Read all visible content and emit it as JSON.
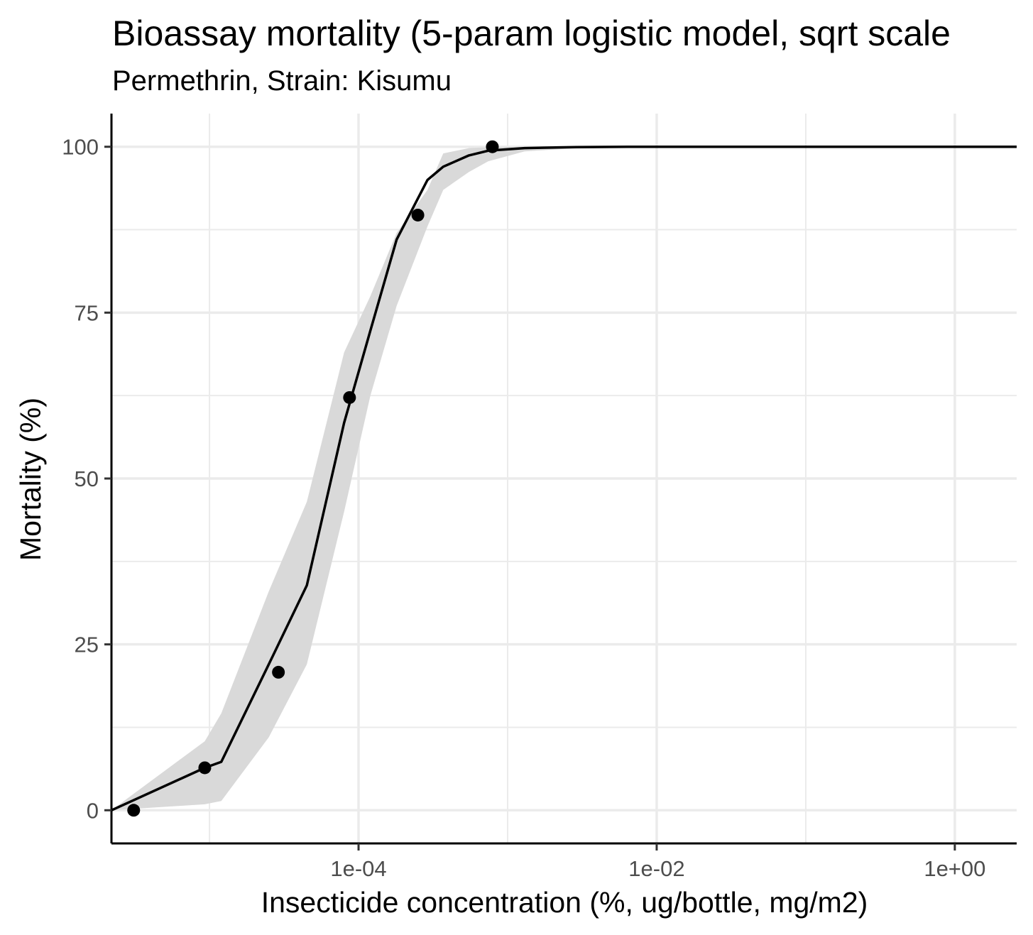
{
  "chart_data": {
    "type": "line",
    "title": "Bioassay mortality (5-param logistic model, sqrt scale",
    "subtitle": "Permethrin, Strain: Kisumu",
    "xlabel": "Insecticide concentration (%, ug/bottle, mg/m2)",
    "ylabel": "Mortality (%)",
    "x_scale": "log10",
    "xlim": [
      2.2e-06,
      2.6
    ],
    "ylim": [
      -5,
      105
    ],
    "x_ticks": [
      0.0001,
      0.01,
      1
    ],
    "x_tick_labels": [
      "1e-04",
      "1e-02",
      "1e+00"
    ],
    "x_minor_ticks": [
      1e-05,
      0.001,
      0.1
    ],
    "y_ticks": [
      0,
      25,
      50,
      75,
      100
    ],
    "y_tick_labels": [
      "0",
      "25",
      "50",
      "75",
      "100"
    ],
    "y_minor_ticks": [
      12.5,
      37.5,
      62.5,
      87.5
    ],
    "grid": true,
    "legend": "none",
    "colors": {
      "line": "#000000",
      "points": "#000000",
      "ribbon": "#d9d9d9",
      "grid": "#ebebeb"
    },
    "observed": {
      "x": [
        3.1e-06,
        9.3e-06,
        2.9e-05,
        8.7e-05,
        0.00025,
        0.00079
      ],
      "y": [
        0,
        6.4,
        20.8,
        62.2,
        89.7,
        100
      ]
    },
    "fit": {
      "x": [
        2.2e-06,
        9.3e-06,
        1.2e-05,
        2.5e-05,
        4.5e-05,
        8e-05,
        0.00012,
        0.00018,
        0.00029,
        0.00037,
        0.00055,
        0.00074,
        0.0013,
        0.0029,
        0.0064,
        0.01,
        0.1,
        1,
        2.6
      ],
      "y": [
        0,
        6.4,
        7.3,
        22.0,
        33.9,
        58.4,
        72.3,
        86.0,
        95.0,
        97.0,
        98.7,
        99.4,
        99.8,
        99.95,
        99.99,
        100,
        100,
        100,
        100
      ]
    },
    "ribbon": {
      "x": [
        2.2e-06,
        9.3e-06,
        1.2e-05,
        2.5e-05,
        4.5e-05,
        8e-05,
        0.00012,
        0.00018,
        0.00029,
        0.00037,
        0.00055,
        0.00074,
        0.0013,
        0.0029,
        0.0064,
        0.01
      ],
      "lower": [
        0,
        0.9,
        1.4,
        11.0,
        22.0,
        45.0,
        62.5,
        76.0,
        88.0,
        93.5,
        96.2,
        97.8,
        99.3,
        99.8,
        99.95,
        100
      ],
      "upper": [
        0,
        10.4,
        14.6,
        33.0,
        46.5,
        69.0,
        77.5,
        87.0,
        93.5,
        99.0,
        99.8,
        99.95,
        100,
        100,
        100,
        100
      ]
    }
  }
}
